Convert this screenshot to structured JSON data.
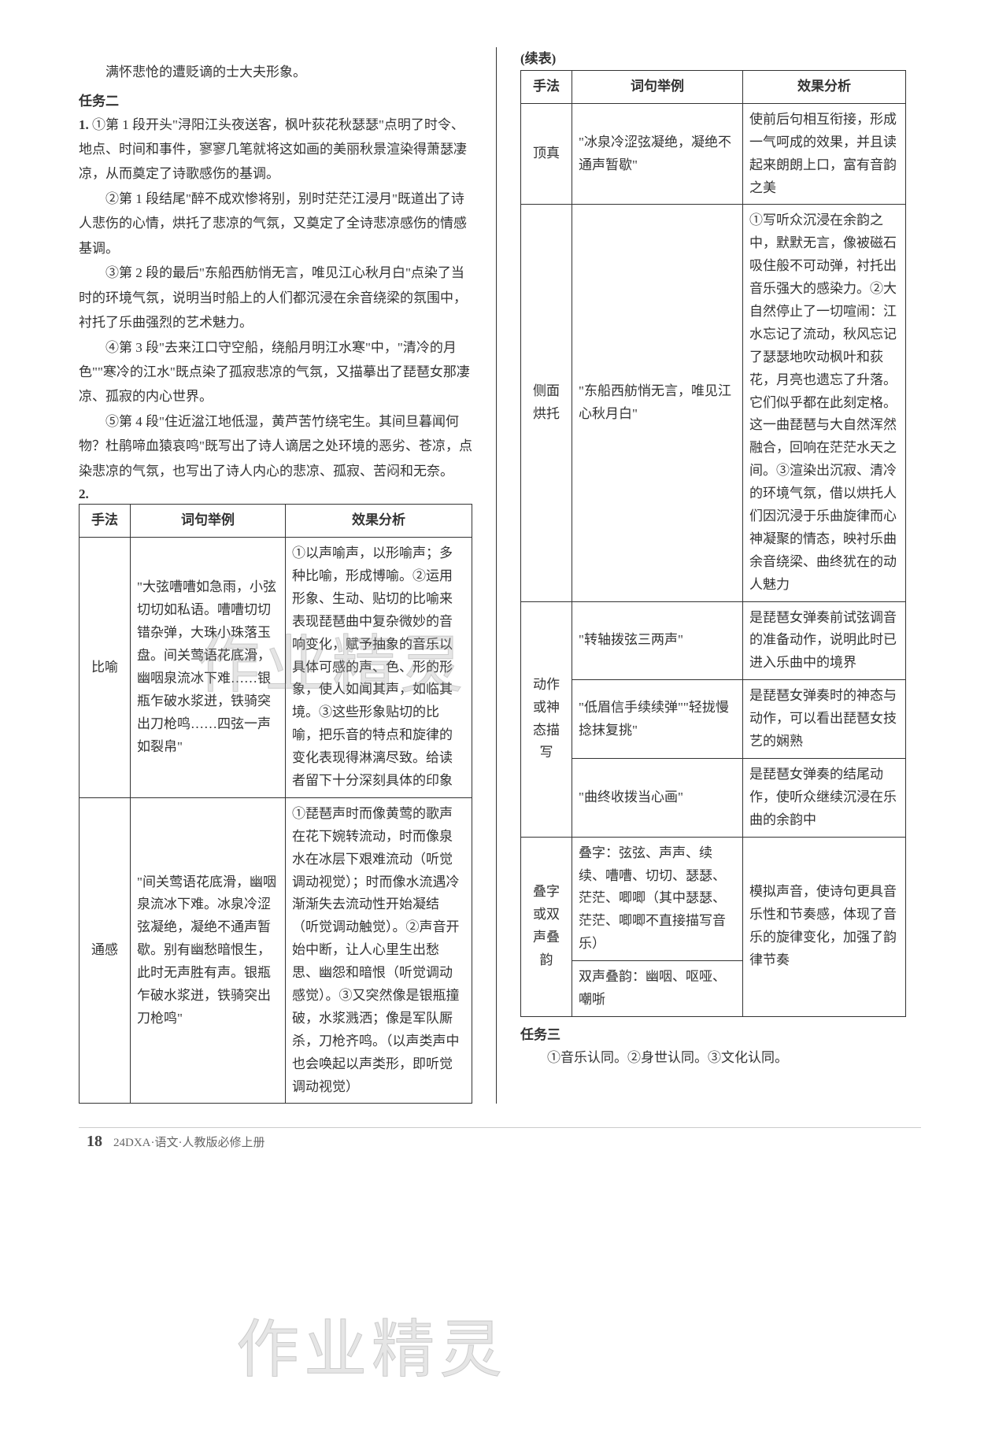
{
  "intro_line": "满怀悲怆的遭贬谪的士大夫形象。",
  "task2_heading": "任务二",
  "item1_label": "1.",
  "item1_paras": [
    "①第 1 段开头\"浔阳江头夜送客，枫叶荻花秋瑟瑟\"点明了时令、地点、时间和事件，寥寥几笔就将这如画的美丽秋景渲染得萧瑟凄凉，从而奠定了诗歌感伤的基调。",
    "②第 1 段结尾\"醉不成欢惨将别，别时茫茫江浸月\"既道出了诗人悲伤的心情，烘托了悲凉的气氛，又奠定了全诗悲凉感伤的情感基调。",
    "③第 2 段的最后\"东船西舫悄无言，唯见江心秋月白\"点染了当时的环境气氛，说明当时船上的人们都沉浸在余音绕梁的氛围中，衬托了乐曲强烈的艺术魅力。",
    "④第 3 段\"去来江口守空船，绕船月明江水寒\"中，\"清冷的月色\"\"寒冷的江水\"既点染了孤寂悲凉的气氛，又描摹出了琵琶女那凄凉、孤寂的内心世界。",
    "⑤第 4 段\"住近湓江地低湿，黄芦苦竹绕宅生。其间旦暮闻何物？杜鹃啼血猿哀鸣\"既写出了诗人谪居之处环境的恶劣、苍凉，点染悲凉的气氛，也写出了诗人内心的悲凉、孤寂、苦闷和无奈。"
  ],
  "item2_label": "2.",
  "table_left": {
    "headers": [
      "手法",
      "词句举例",
      "效果分析"
    ],
    "rows": [
      {
        "method": "比喻",
        "example": "\"大弦嘈嘈如急雨，小弦切切如私语。嘈嘈切切错杂弹，大珠小珠落玉盘。间关莺语花底滑，幽咽泉流冰下难……银瓶乍破水浆迸，铁骑突出刀枪鸣……四弦一声如裂帛\"",
        "analysis": "①以声喻声，以形喻声；多种比喻，形成博喻。②运用形象、生动、贴切的比喻来表现琵琶曲中复杂微妙的音响变化，赋予抽象的音乐以具体可感的声、色、形的形象，使人如闻其声，如临其境。③这些形象贴切的比喻，把乐音的特点和旋律的变化表现得淋漓尽致。给读者留下十分深刻具体的印象"
      },
      {
        "method": "通感",
        "example": "\"间关莺语花底滑，幽咽泉流冰下难。冰泉冷涩弦凝绝，凝绝不通声暂歇。别有幽愁暗恨生，此时无声胜有声。银瓶乍破水浆迸，铁骑突出刀枪鸣\"",
        "analysis": "①琵琶声时而像黄莺的歌声在花下婉转流动，时而像泉水在冰层下艰难流动（听觉调动视觉）；时而像水流遇冷渐渐失去流动性开始凝结（听觉调动触觉）。②声音开始中断，让人心里生出愁思、幽怨和暗恨（听觉调动感觉）。③又突然像是银瓶撞破，水浆溅洒；像是军队厮杀，刀枪齐鸣。（以声类声中也会唤起以声类形，即听觉调动视觉）"
      }
    ]
  },
  "cont_label": "(续表)",
  "table_right": {
    "headers": [
      "手法",
      "词句举例",
      "效果分析"
    ],
    "rows": [
      {
        "method": "顶真",
        "example": "\"冰泉冷涩弦凝绝，凝绝不通声暂歇\"",
        "analysis": "使前后句相互衔接，形成一气呵成的效果，并且读起来朗朗上口，富有音韵之美"
      },
      {
        "method": "侧面烘托",
        "example": "\"东船西舫悄无言，唯见江心秋月白\"",
        "analysis": "①写听众沉浸在余韵之中，默默无言，像被磁石吸住般不可动弹，衬托出音乐强大的感染力。②大自然停止了一切喧闹：江水忘记了流动，秋风忘记了瑟瑟地吹动枫叶和荻花，月亮也遗忘了升落。它们似乎都在此刻定格。这一曲琵琶与大自然浑然融合，回响在茫茫水天之间。③渲染出沉寂、清冷的环境气氛，借以烘托人们因沉浸于乐曲旋律而心神凝聚的情态，映衬乐曲余音绕梁、曲终犹在的动人魅力"
      },
      {
        "method": "动作或神态描写",
        "method_rowspan": 3,
        "example": "\"转轴拨弦三两声\"",
        "analysis": "是琵琶女弹奏前试弦调音的准备动作，说明此时已进入乐曲中的境界"
      },
      {
        "example": "\"低眉信手续续弹\"\"轻拢慢捻抹复挑\"",
        "analysis": "是琵琶女弹奏时的神态与动作，可以看出琵琶女技艺的娴熟"
      },
      {
        "example": "\"曲终收拨当心画\"",
        "analysis": "是琵琶女弹奏的结尾动作，使听众继续沉浸在乐曲的余韵中"
      },
      {
        "method": "叠字或双声叠韵",
        "method_rowspan": 2,
        "example": "叠字：弦弦、声声、续续、嘈嘈、切切、瑟瑟、茫茫、唧唧（其中瑟瑟、茫茫、唧唧不直接描写音乐）",
        "analysis": "模拟声音，使诗句更具音乐性和节奏感，体现了音乐的旋律变化，加强了韵律节奏",
        "analysis_rowspan": 2
      },
      {
        "example": "双声叠韵：幽咽、呕哑、嘲哳"
      }
    ]
  },
  "task3_heading": "任务三",
  "task3_body": "①音乐认同。②身世认同。③文化认同。",
  "watermark_text": "作业精灵",
  "footer": {
    "page": "18",
    "book": "24DXA·语文·人教版必修上册"
  }
}
